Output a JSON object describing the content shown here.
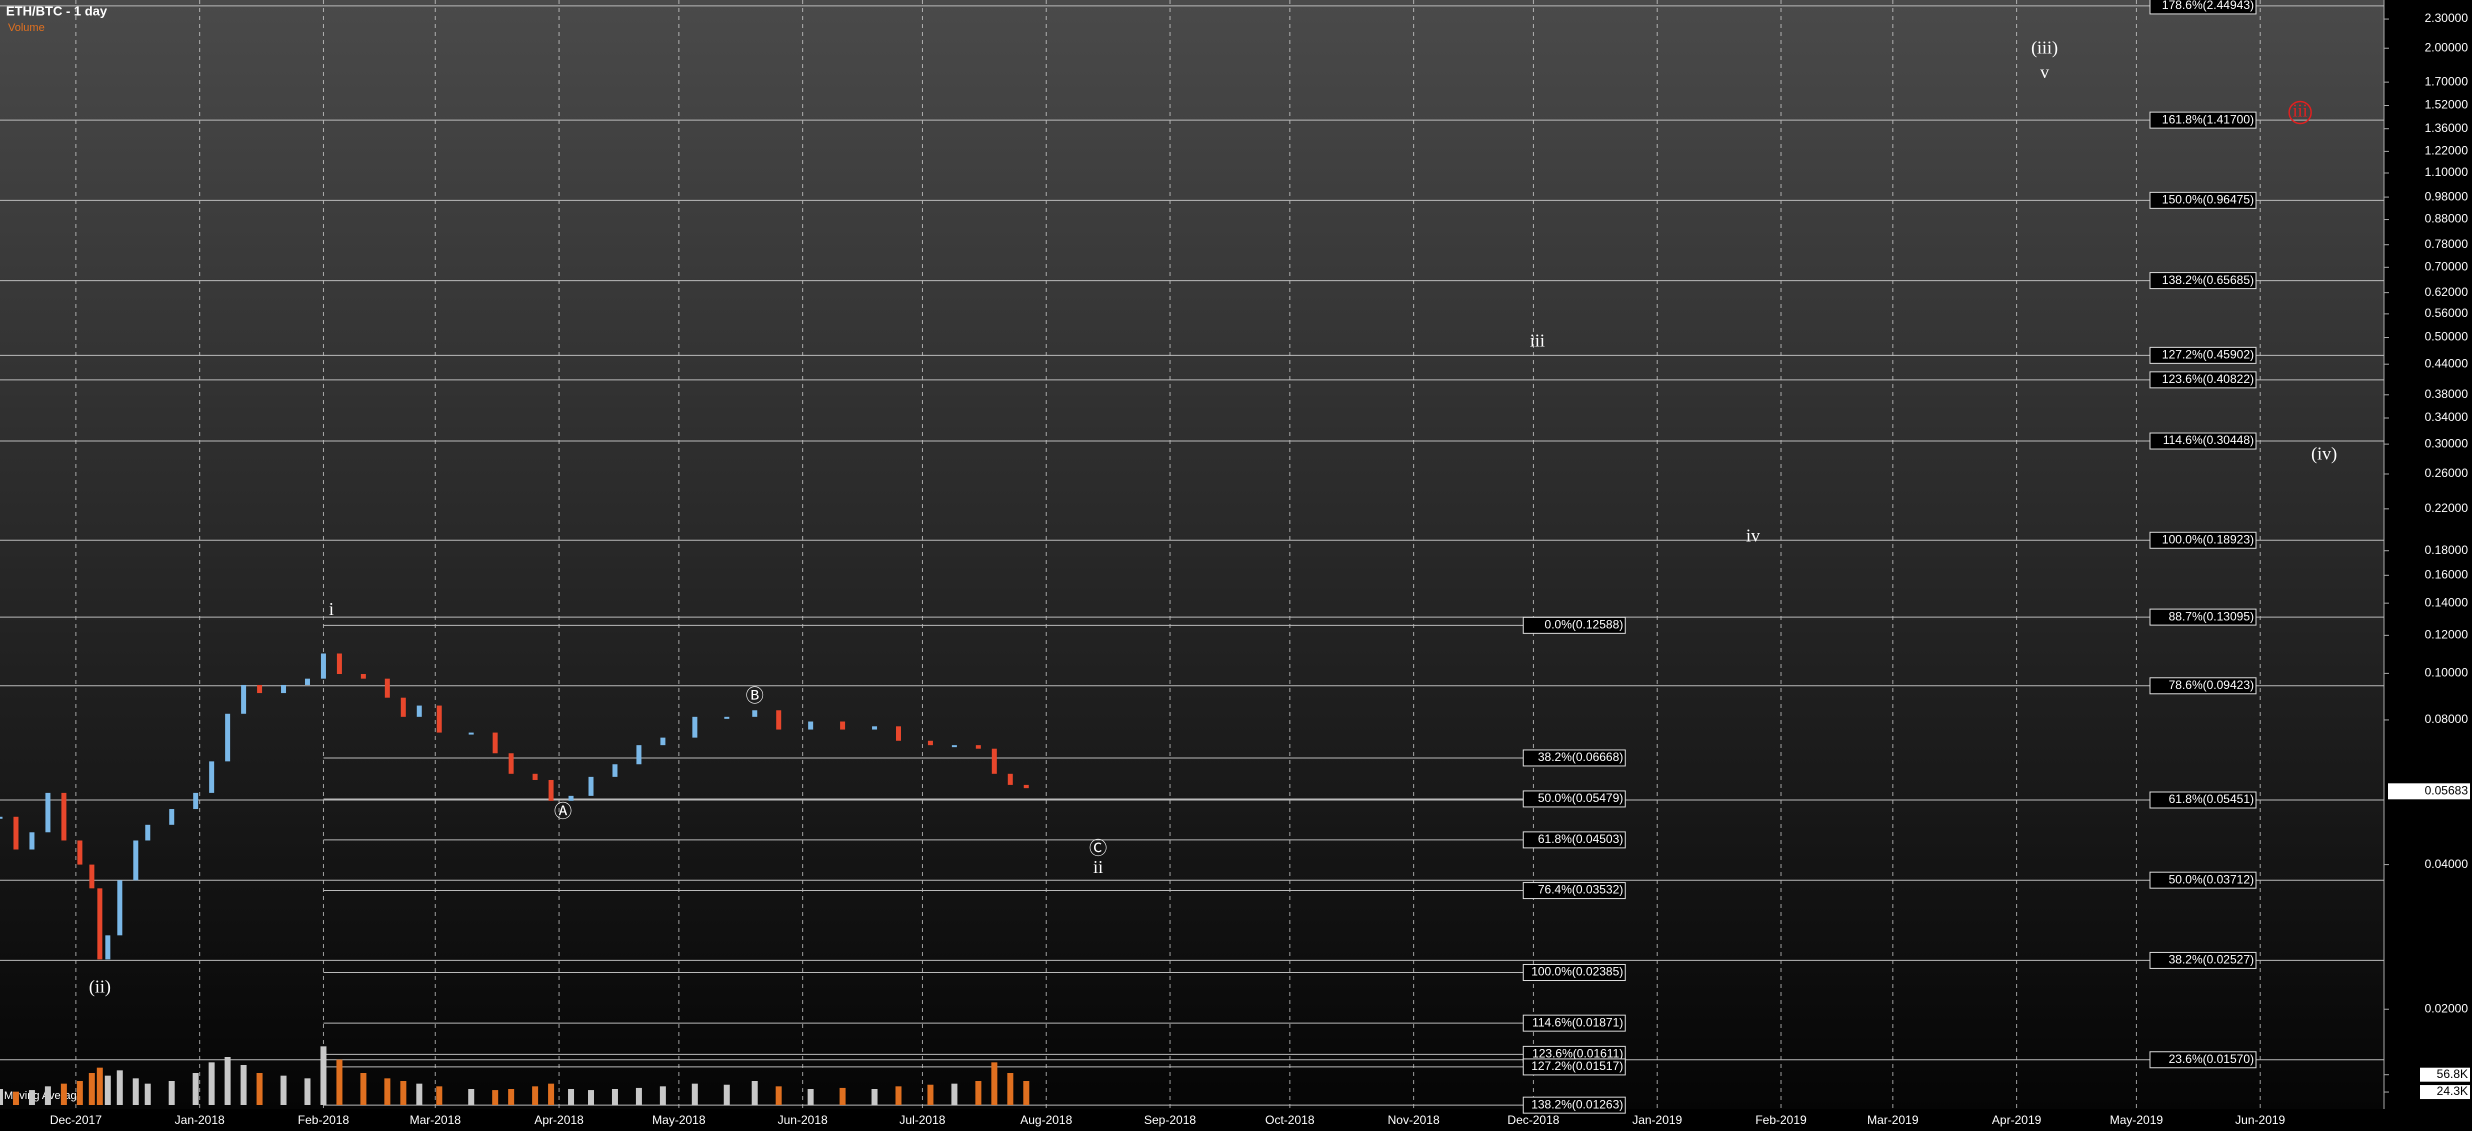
{
  "chart_data": {
    "type": "candlestick",
    "title": "ETH/BTC - 1 day",
    "log_scale": true,
    "xlim": [
      "2017-11-12",
      "2019-07-02"
    ],
    "xticks": [
      {
        "value": "2017-12-01",
        "label": "Dec-2017"
      },
      {
        "value": "2018-01-01",
        "label": "Jan-2018"
      },
      {
        "value": "2018-02-01",
        "label": "Feb-2018"
      },
      {
        "value": "2018-03-01",
        "label": "Mar-2018"
      },
      {
        "value": "2018-04-01",
        "label": "Apr-2018"
      },
      {
        "value": "2018-05-01",
        "label": "May-2018"
      },
      {
        "value": "2018-06-01",
        "label": "Jun-2018"
      },
      {
        "value": "2018-07-01",
        "label": "Jul-2018"
      },
      {
        "value": "2018-08-01",
        "label": "Aug-2018"
      },
      {
        "value": "2018-09-01",
        "label": "Sep-2018"
      },
      {
        "value": "2018-10-01",
        "label": "Oct-2018"
      },
      {
        "value": "2018-11-01",
        "label": "Nov-2018"
      },
      {
        "value": "2018-12-01",
        "label": "Dec-2018"
      },
      {
        "value": "2019-01-01",
        "label": "Jan-2019"
      },
      {
        "value": "2019-02-01",
        "label": "Feb-2019"
      },
      {
        "value": "2019-03-01",
        "label": "Mar-2019"
      },
      {
        "value": "2019-04-01",
        "label": "Apr-2019"
      },
      {
        "value": "2019-05-01",
        "label": "May-2019"
      },
      {
        "value": "2019-06-01",
        "label": "Jun-2019"
      }
    ],
    "ylim": [
      0.0124,
      2.52
    ],
    "yticks": [
      {
        "value": 2.3,
        "label": "2.30000"
      },
      {
        "value": 2.0,
        "label": "2.00000"
      },
      {
        "value": 1.7,
        "label": "1.70000"
      },
      {
        "value": 1.52,
        "label": "1.52000"
      },
      {
        "value": 1.36,
        "label": "1.36000"
      },
      {
        "value": 1.22,
        "label": "1.22000"
      },
      {
        "value": 1.1,
        "label": "1.10000"
      },
      {
        "value": 0.98,
        "label": "0.98000"
      },
      {
        "value": 0.88,
        "label": "0.88000"
      },
      {
        "value": 0.78,
        "label": "0.78000"
      },
      {
        "value": 0.7,
        "label": "0.70000"
      },
      {
        "value": 0.62,
        "label": "0.62000"
      },
      {
        "value": 0.56,
        "label": "0.56000"
      },
      {
        "value": 0.5,
        "label": "0.50000"
      },
      {
        "value": 0.44,
        "label": "0.44000"
      },
      {
        "value": 0.38,
        "label": "0.38000"
      },
      {
        "value": 0.34,
        "label": "0.34000"
      },
      {
        "value": 0.3,
        "label": "0.30000"
      },
      {
        "value": 0.26,
        "label": "0.26000"
      },
      {
        "value": 0.22,
        "label": "0.22000"
      },
      {
        "value": 0.18,
        "label": "0.18000"
      },
      {
        "value": 0.16,
        "label": "0.16000"
      },
      {
        "value": 0.14,
        "label": "0.14000"
      },
      {
        "value": 0.12,
        "label": "0.12000"
      },
      {
        "value": 0.1,
        "label": "0.10000"
      },
      {
        "value": 0.08,
        "label": "0.08000"
      },
      {
        "value": 0.04,
        "label": "0.04000"
      },
      {
        "value": 0.02,
        "label": "0.02000"
      }
    ],
    "up_color": "#7ab8e8",
    "down_color": "#e8472c",
    "x": [
      "2017-11-12",
      "2017-11-16",
      "2017-11-20",
      "2017-11-24",
      "2017-11-28",
      "2017-12-02",
      "2017-12-05",
      "2017-12-07",
      "2017-12-09",
      "2017-12-12",
      "2017-12-16",
      "2017-12-19",
      "2017-12-25",
      "2017-12-31",
      "2018-01-04",
      "2018-01-08",
      "2018-01-12",
      "2018-01-16",
      "2018-01-22",
      "2018-01-28",
      "2018-02-01",
      "2018-02-05",
      "2018-02-11",
      "2018-02-17",
      "2018-02-21",
      "2018-02-25",
      "2018-03-02",
      "2018-03-10",
      "2018-03-16",
      "2018-03-20",
      "2018-03-26",
      "2018-03-30",
      "2018-04-04",
      "2018-04-09",
      "2018-04-15",
      "2018-04-21",
      "2018-04-27",
      "2018-05-05",
      "2018-05-13",
      "2018-05-20",
      "2018-05-26",
      "2018-06-03",
      "2018-06-11",
      "2018-06-19",
      "2018-06-25",
      "2018-07-03",
      "2018-07-09",
      "2018-07-15",
      "2018-07-19",
      "2018-07-23",
      "2018-07-27"
    ],
    "values": [
      0.0503,
      0.043,
      0.0467,
      0.0564,
      0.0449,
      0.04,
      0.0357,
      0.0254,
      0.0285,
      0.0371,
      0.0449,
      0.0484,
      0.0522,
      0.0564,
      0.0656,
      0.0824,
      0.0946,
      0.091,
      0.0946,
      0.0975,
      0.11,
      0.0997,
      0.0975,
      0.089,
      0.0812,
      0.0857,
      0.0753,
      0.0753,
      0.0682,
      0.0618,
      0.06,
      0.0543,
      0.0556,
      0.0609,
      0.0647,
      0.0709,
      0.0735,
      0.0812,
      0.0812,
      0.0838,
      0.0764,
      0.0794,
      0.0764,
      0.0776,
      0.0724,
      0.0709,
      0.0709,
      0.0697,
      0.0618,
      0.0586,
      0.0577
    ],
    "last_price": {
      "value": 0.05683,
      "label": "0.05683"
    },
    "volume": {
      "label": "Volume",
      "ma_label": "Moving Average",
      "color": "#e07020",
      "ylim": [
        0,
        150000
      ],
      "yticks": [
        {
          "value": 56800,
          "label": "56.8K"
        },
        {
          "value": 24300,
          "label": "24.3K"
        }
      ],
      "values": [
        30000,
        25000,
        28000,
        35000,
        40000,
        45000,
        60000,
        70000,
        55000,
        65000,
        50000,
        40000,
        45000,
        60000,
        80000,
        90000,
        75000,
        60000,
        55000,
        50000,
        110000,
        85000,
        60000,
        50000,
        45000,
        40000,
        35000,
        30000,
        28000,
        30000,
        35000,
        40000,
        30000,
        28000,
        30000,
        32000,
        35000,
        40000,
        38000,
        45000,
        35000,
        30000,
        32000,
        30000,
        35000,
        38000,
        40000,
        45000,
        80000,
        60000,
        45000
      ]
    },
    "fib_left": {
      "start": "2018-02-01",
      "end": "2018-12-24",
      "levels": [
        {
          "value": 0.12588,
          "label": "0.0%(0.12588)"
        },
        {
          "value": 0.06668,
          "label": "38.2%(0.06668)"
        },
        {
          "value": 0.05479,
          "label": "50.0%(0.05479)"
        },
        {
          "value": 0.04503,
          "label": "61.8%(0.04503)"
        },
        {
          "value": 0.03532,
          "label": "76.4%(0.03532)"
        },
        {
          "value": 0.02385,
          "label": "100.0%(0.02385)"
        },
        {
          "value": 0.01871,
          "label": "114.6%(0.01871)"
        },
        {
          "value": 0.01611,
          "label": "123.6%(0.01611)"
        },
        {
          "value": 0.01517,
          "label": "127.2%(0.01517)"
        },
        {
          "value": 0.01263,
          "label": "138.2%(0.01263)"
        }
      ]
    },
    "fib_right": {
      "levels": [
        {
          "value": 2.44943,
          "label": "178.6%(2.44943)"
        },
        {
          "value": 1.417,
          "label": "161.8%(1.41700)"
        },
        {
          "value": 0.96475,
          "label": "150.0%(0.96475)"
        },
        {
          "value": 0.65685,
          "label": "138.2%(0.65685)"
        },
        {
          "value": 0.45902,
          "label": "127.2%(0.45902)"
        },
        {
          "value": 0.40822,
          "label": "123.6%(0.40822)"
        },
        {
          "value": 0.30448,
          "label": "114.6%(0.30448)"
        },
        {
          "value": 0.18923,
          "label": "100.0%(0.18923)"
        },
        {
          "value": 0.13095,
          "label": "88.7%(0.13095)"
        },
        {
          "value": 0.09423,
          "label": "78.6%(0.09423)"
        },
        {
          "value": 0.05451,
          "label": "61.8%(0.05451)"
        },
        {
          "value": 0.03712,
          "label": "50.0%(0.03712)"
        },
        {
          "value": 0.02527,
          "label": "38.2%(0.02527)"
        },
        {
          "value": 0.0157,
          "label": "23.6%(0.01570)"
        }
      ]
    },
    "annotations": [
      {
        "text": "i",
        "x": "2018-02-03",
        "y": 0.135,
        "color": "#ffffff"
      },
      {
        "text": "(ii)",
        "x": "2017-12-07",
        "y": 0.0221,
        "color": "#ffffff"
      },
      {
        "text": "Ⓐ",
        "x": "2018-04-02",
        "y": 0.0511,
        "color": "#ffffff"
      },
      {
        "text": "Ⓑ",
        "x": "2018-05-20",
        "y": 0.089,
        "color": "#ffffff"
      },
      {
        "text": "Ⓒ",
        "x": "2018-08-14",
        "y": 0.0428,
        "color": "#ffffff"
      },
      {
        "text": "ii",
        "x": "2018-08-14",
        "y": 0.0392,
        "color": "#ffffff"
      },
      {
        "text": "iii",
        "x": "2018-12-02",
        "y": 0.489,
        "color": "#ffffff"
      },
      {
        "text": "iv",
        "x": "2019-01-25",
        "y": 0.192,
        "color": "#ffffff"
      },
      {
        "text": "(iii)",
        "x": "2019-04-08",
        "y": 1.99,
        "color": "#ffffff"
      },
      {
        "text": "v",
        "x": "2019-04-08",
        "y": 1.77,
        "color": "#ffffff"
      },
      {
        "text": "(iv)",
        "x": "2019-06-17",
        "y": 0.284,
        "color": "#ffffff"
      },
      {
        "text": "iii",
        "x": "2019-06-11",
        "y": 1.47,
        "color": "#e02020",
        "circled": true
      }
    ]
  }
}
